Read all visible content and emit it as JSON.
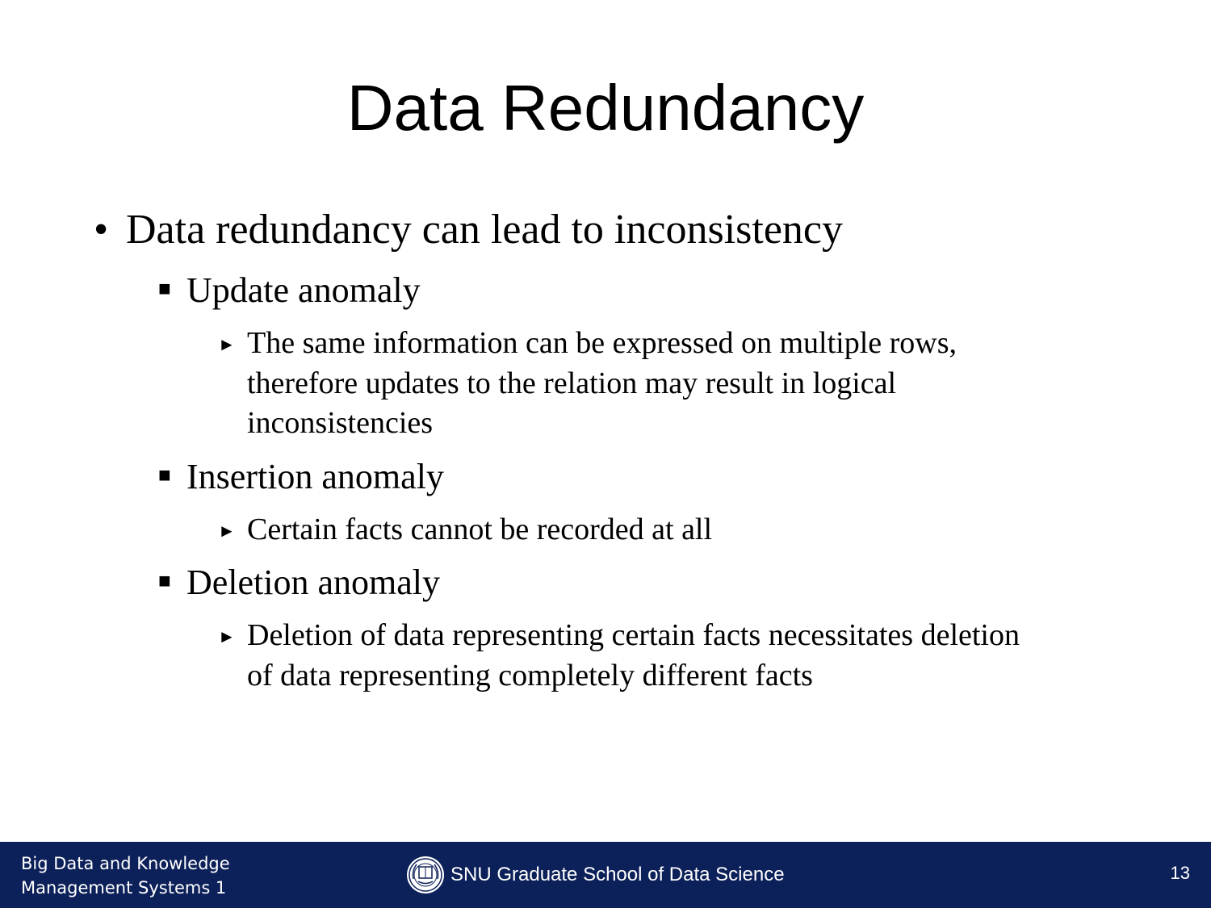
{
  "slide": {
    "title": "Data Redundancy",
    "main_point": "Data redundancy can lead to inconsistency",
    "anomalies": [
      {
        "name": "Update anomaly",
        "detail_lines": [
          "The same information can be expressed on multiple rows,",
          "therefore updates to the relation may result in logical",
          "inconsistencies"
        ]
      },
      {
        "name": "Insertion anomaly",
        "detail_lines": [
          "Certain facts cannot be recorded at all"
        ]
      },
      {
        "name": "Deletion anomaly",
        "detail_lines": [
          "Deletion of data representing certain facts necessitates deletion",
          "of data representing completely different facts"
        ]
      }
    ],
    "bullets": {
      "level1": "•",
      "level2": "■",
      "level3": "►"
    }
  },
  "footer": {
    "course_line1": "Big Data and Knowledge",
    "course_line2": "Management Systems 1",
    "school_name": "SNU Graduate School of Data Science",
    "page_number": "13",
    "background_color": "#0c2059",
    "logo_icon": "snu-seal-icon"
  }
}
